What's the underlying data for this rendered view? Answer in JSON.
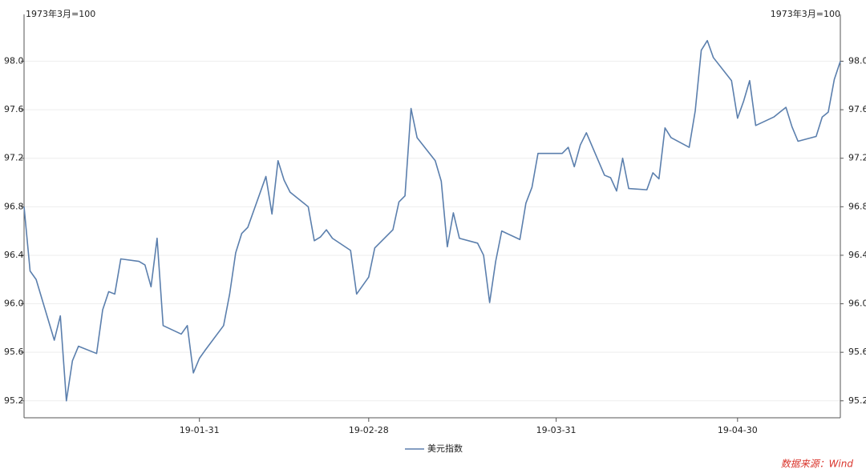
{
  "chart_data": {
    "type": "line",
    "ylabel": "1973年3月=100",
    "y2label": "1973年3月=100",
    "source": "数据来源：Wind",
    "grid": true,
    "legend": "bottom",
    "xlim": [
      "2019-01-02",
      "2019-05-17"
    ],
    "xticks": [
      {
        "value": "2019-01-31",
        "label": "19-01-31"
      },
      {
        "value": "2019-02-28",
        "label": "19-02-28"
      },
      {
        "value": "2019-03-31",
        "label": "19-03-31"
      },
      {
        "value": "2019-04-30",
        "label": "19-04-30"
      }
    ],
    "ylim": [
      95.06,
      98.32
    ],
    "yticks": [
      95.2,
      95.6,
      {
        "value": 96,
        "label": "96.0"
      },
      96.4,
      96.8,
      97.2,
      97.6,
      {
        "value": 98,
        "label": "98.0"
      }
    ],
    "y2lim": [
      95.06,
      98.32
    ],
    "y2ticks": [
      95.2,
      95.6,
      {
        "value": 96,
        "label": "96.0"
      },
      96.4,
      96.8,
      97.2,
      97.6,
      {
        "value": 98,
        "label": "98.0"
      }
    ],
    "x": [
      "2019-01-02",
      "2019-01-03",
      "2019-01-04",
      "2019-01-07",
      "2019-01-08",
      "2019-01-09",
      "2019-01-10",
      "2019-01-11",
      "2019-01-14",
      "2019-01-15",
      "2019-01-16",
      "2019-01-17",
      "2019-01-18",
      "2019-01-21",
      "2019-01-22",
      "2019-01-23",
      "2019-01-24",
      "2019-01-25",
      "2019-01-28",
      "2019-01-29",
      "2019-01-30",
      "2019-01-31",
      "2019-02-01",
      "2019-02-04",
      "2019-02-05",
      "2019-02-06",
      "2019-02-07",
      "2019-02-08",
      "2019-02-11",
      "2019-02-12",
      "2019-02-13",
      "2019-02-14",
      "2019-02-15",
      "2019-02-18",
      "2019-02-19",
      "2019-02-20",
      "2019-02-21",
      "2019-02-22",
      "2019-02-25",
      "2019-02-26",
      "2019-02-27",
      "2019-02-28",
      "2019-03-01",
      "2019-03-04",
      "2019-03-05",
      "2019-03-06",
      "2019-03-07",
      "2019-03-08",
      "2019-03-11",
      "2019-03-12",
      "2019-03-13",
      "2019-03-14",
      "2019-03-15",
      "2019-03-18",
      "2019-03-19",
      "2019-03-20",
      "2019-03-21",
      "2019-03-22",
      "2019-03-25",
      "2019-03-26",
      "2019-03-27",
      "2019-03-28",
      "2019-03-29",
      "2019-04-01",
      "2019-04-02",
      "2019-04-03",
      "2019-04-04",
      "2019-04-05",
      "2019-04-08",
      "2019-04-09",
      "2019-04-10",
      "2019-04-11",
      "2019-04-12",
      "2019-04-15",
      "2019-04-16",
      "2019-04-17",
      "2019-04-18",
      "2019-04-19",
      "2019-04-22",
      "2019-04-23",
      "2019-04-24",
      "2019-04-25",
      "2019-04-26",
      "2019-04-29",
      "2019-04-30",
      "2019-05-01",
      "2019-05-02",
      "2019-05-03",
      "2019-05-06",
      "2019-05-07",
      "2019-05-08",
      "2019-05-09",
      "2019-05-10",
      "2019-05-13",
      "2019-05-14",
      "2019-05-15",
      "2019-05-16",
      "2019-05-17"
    ],
    "series": [
      {
        "name": "美元指数",
        "color": "#5b7fad",
        "values": [
          96.8,
          96.27,
          96.2,
          95.7,
          95.9,
          95.2,
          95.53,
          95.65,
          95.59,
          95.95,
          96.1,
          96.08,
          96.37,
          96.35,
          96.32,
          96.14,
          96.54,
          95.82,
          95.75,
          95.82,
          95.43,
          95.55,
          95.62,
          95.82,
          96.08,
          96.42,
          96.58,
          96.63,
          97.05,
          96.74,
          97.18,
          97.02,
          96.92,
          96.8,
          96.52,
          96.55,
          96.61,
          96.54,
          96.44,
          96.08,
          96.15,
          96.22,
          96.46,
          96.61,
          96.84,
          96.89,
          97.61,
          97.37,
          97.18,
          97.01,
          96.47,
          96.75,
          96.54,
          96.5,
          96.4,
          96.01,
          96.35,
          96.6,
          96.53,
          96.83,
          96.96,
          97.24,
          97.24,
          97.24,
          97.29,
          97.13,
          97.31,
          97.41,
          97.06,
          97.04,
          96.93,
          97.2,
          96.95,
          96.94,
          97.08,
          97.03,
          97.45,
          97.37,
          97.29,
          97.59,
          98.09,
          98.17,
          98.03,
          97.84,
          97.53,
          97.67,
          97.84,
          97.47,
          97.54,
          97.58,
          97.62,
          97.46,
          97.34,
          97.38,
          97.54,
          97.58,
          97.85,
          98.0
        ]
      }
    ]
  }
}
